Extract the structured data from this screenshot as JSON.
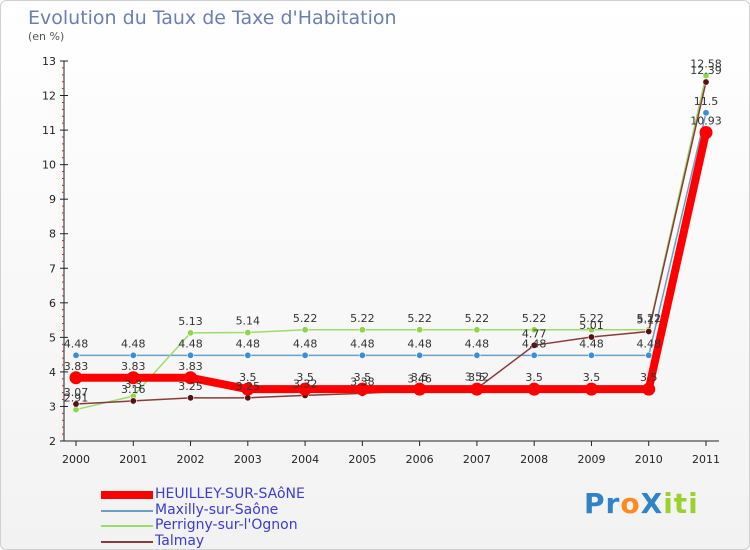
{
  "header": {
    "title": "Evolution du Taux de Taxe d'Habitation",
    "unit": "(en %)"
  },
  "brand": {
    "text": "ProXiti"
  },
  "chart_data": {
    "type": "line",
    "title": "Evolution du Taux de Taxe d'Habitation",
    "ylabel": "(en %)",
    "xlabel": "",
    "x": [
      "2000",
      "2001",
      "2002",
      "2003",
      "2004",
      "2005",
      "2006",
      "2007",
      "2008",
      "2009",
      "2010",
      "2011"
    ],
    "ylim": [
      2,
      13
    ],
    "yticks": [
      "2",
      "3",
      "4",
      "5",
      "6",
      "7",
      "8",
      "9",
      "10",
      "11",
      "12",
      "13"
    ],
    "grid": false,
    "legend_position": "bottom-left",
    "series": [
      {
        "name": "HEUILLEY-SUR-SAôNE",
        "color": "#ff0000",
        "width": "thick",
        "values": [
          3.83,
          3.83,
          3.83,
          3.5,
          3.5,
          3.5,
          3.5,
          3.5,
          3.5,
          3.5,
          3.5,
          10.93
        ],
        "labels": [
          "3.83",
          "3.83",
          "3.83",
          "3.5",
          "3.5",
          "3.5",
          "3.5",
          "3.5",
          "3.5",
          "3.5",
          "3.5",
          "10.93"
        ]
      },
      {
        "name": "Maxilly-sur-Saône",
        "color": "#6aa0c8",
        "marker_color": "#3a8fd6",
        "width": "thin",
        "values": [
          4.48,
          4.48,
          4.48,
          4.48,
          4.48,
          4.48,
          4.48,
          4.48,
          4.48,
          4.48,
          4.48,
          11.5
        ],
        "labels": [
          "4.48",
          "4.48",
          "4.48",
          "4.48",
          "4.48",
          "4.48",
          "4.48",
          "4.48",
          "4.48",
          "4.48",
          "4.48",
          "11.5"
        ]
      },
      {
        "name": "Perrigny-sur-l'Ognon",
        "color": "#9bdc6b",
        "marker_color": "#8cd64a",
        "width": "thin",
        "values": [
          2.91,
          3.3,
          5.13,
          5.14,
          5.22,
          5.22,
          5.22,
          5.22,
          5.22,
          5.22,
          5.22,
          12.58
        ],
        "labels": [
          "2.91",
          "3.3",
          "5.13",
          "5.14",
          "5.22",
          "5.22",
          "5.22",
          "5.22",
          "5.22",
          "5.22",
          "5.22",
          "12.58"
        ]
      },
      {
        "name": "Talmay",
        "color": "#8b3a3a",
        "marker_color": "#5a1010",
        "width": "thin",
        "values": [
          3.07,
          3.16,
          3.25,
          3.25,
          3.32,
          3.38,
          3.46,
          3.52,
          4.77,
          5.01,
          5.17,
          12.39
        ],
        "labels": [
          "3.07",
          "3.16",
          "3.25",
          "3.25",
          "3.32",
          "3.38",
          "3.46",
          "3.52",
          "4.77",
          "5.01",
          "5.17",
          "12.39"
        ]
      }
    ]
  }
}
